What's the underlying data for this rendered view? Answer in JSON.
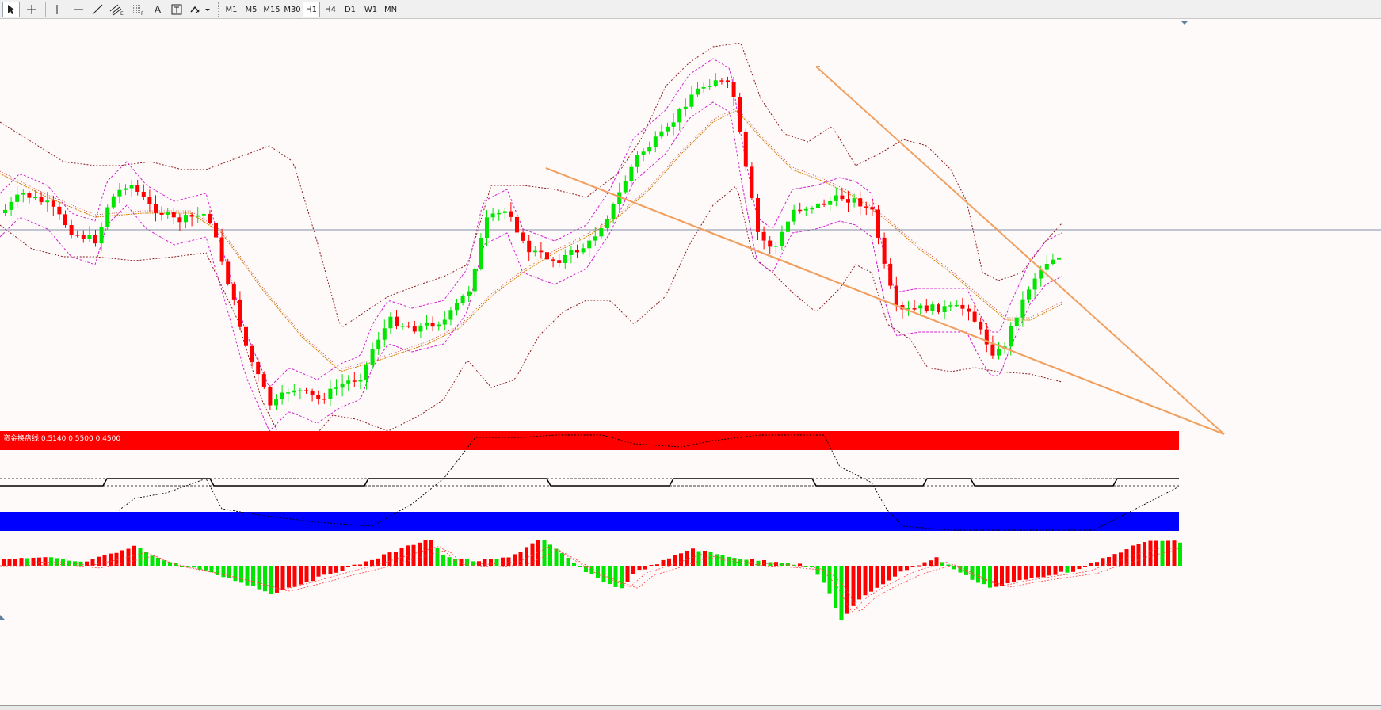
{
  "toolbar": {
    "tools": [
      {
        "name": "cursor-tool",
        "icon": "cursor-arrow-icon"
      },
      {
        "name": "crosshair-tool",
        "icon": "crosshair-icon"
      },
      {
        "name": "vertical-line-tool",
        "icon": "vertical-line-icon"
      },
      {
        "name": "horizontal-line-tool",
        "icon": "horizontal-line-icon"
      },
      {
        "name": "trendline-tool",
        "icon": "trendline-icon"
      },
      {
        "name": "equidistant-channel-tool",
        "icon": "channel-icon",
        "label": "E"
      },
      {
        "name": "fibonacci-tool",
        "icon": "fibonacci-icon",
        "label": "F"
      },
      {
        "name": "text-tool",
        "icon": "text-icon",
        "label": "A"
      },
      {
        "name": "text-label-tool",
        "icon": "text-label-icon",
        "label": "T"
      },
      {
        "name": "arrows-tool",
        "icon": "arrows-dropdown-icon"
      }
    ],
    "timeframes": [
      "M1",
      "M5",
      "M15",
      "M30",
      "H1",
      "H4",
      "D1",
      "W1",
      "MN"
    ],
    "active_timeframe": "H1"
  },
  "indicator": {
    "label": "资金换盘线 0.5140 0.5500 0.4500"
  },
  "colors": {
    "bull_candle": "#00e600",
    "bear_candle": "#ff0000",
    "bollinger": "#8b1a1a",
    "envelope": "#d020d0",
    "ma": "#d08000",
    "trendline": "#f0a060",
    "level_line": "#8090a8",
    "upper_band": "#ff0000",
    "lower_band": "#0000ff"
  }
}
